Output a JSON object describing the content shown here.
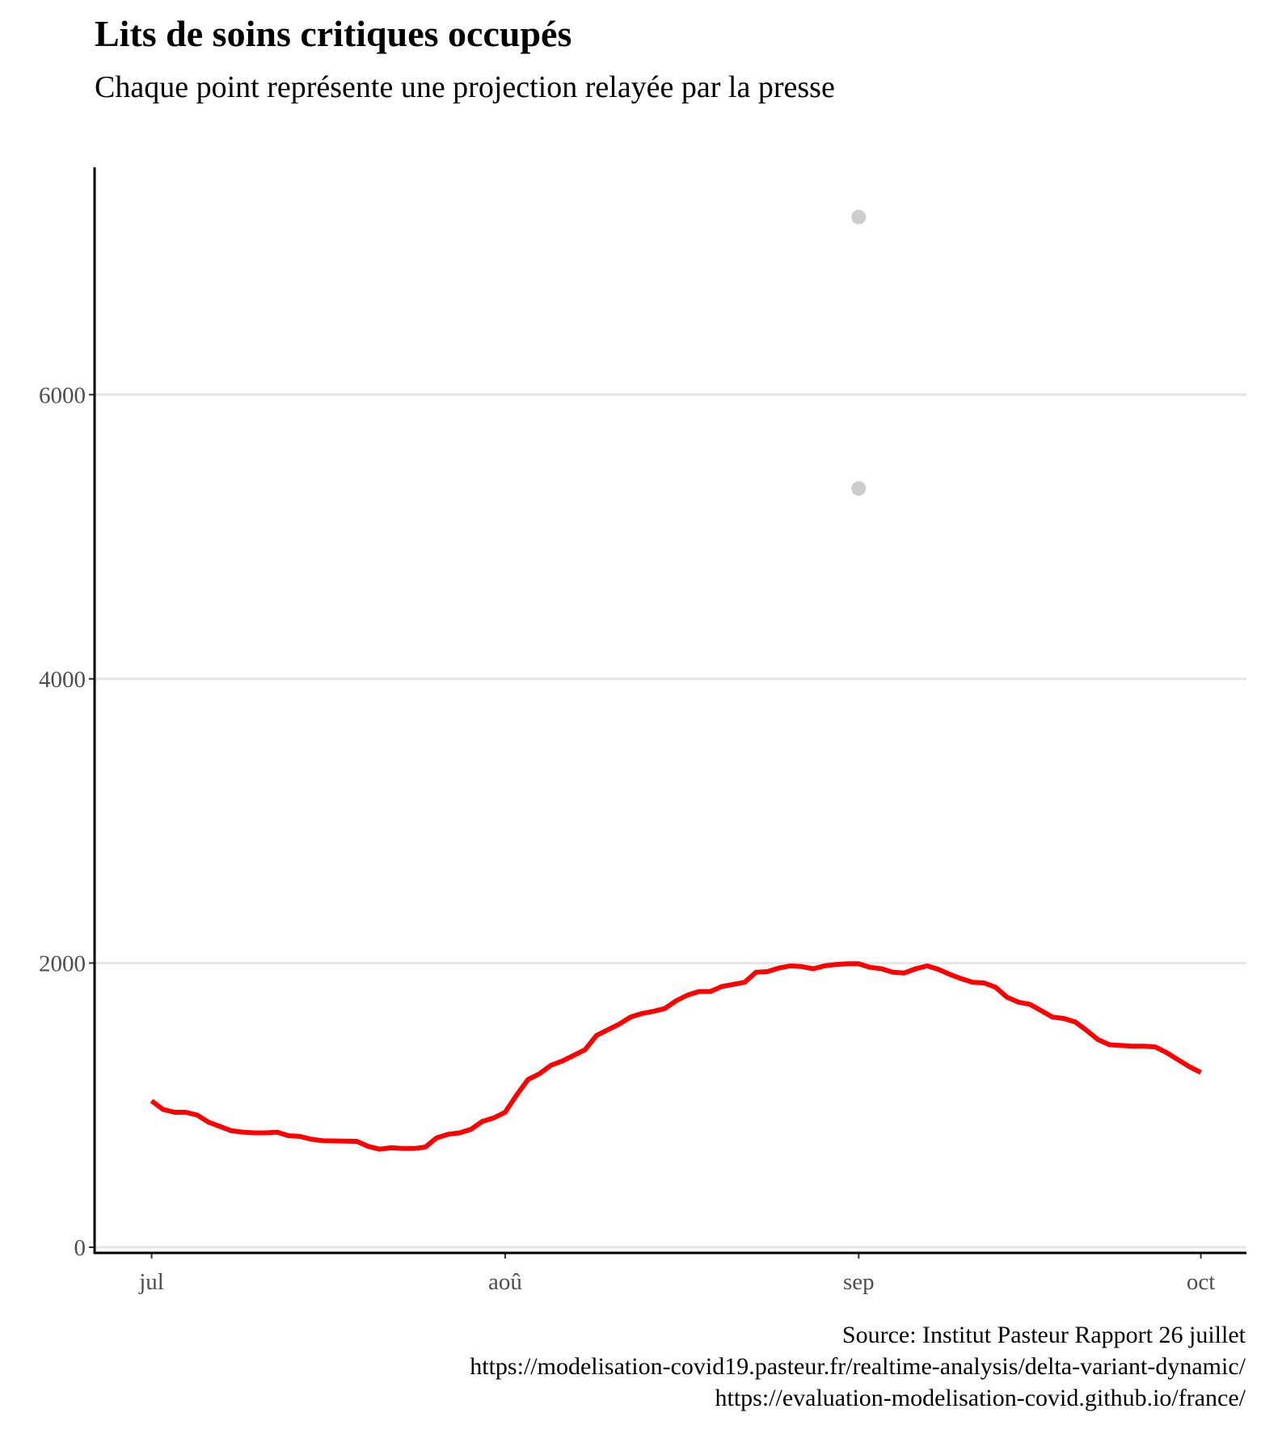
{
  "chart_data": {
    "type": "line",
    "title": "Lits de soins critiques occupés",
    "subtitle": "Chaque point représente une projection relayée par la presse",
    "xlabel": "",
    "ylabel": "",
    "xlim": [
      "2021-06-26",
      "2021-10-05"
    ],
    "ylim": [
      0,
      7600
    ],
    "x_ticks": [
      {
        "date": "2021-07-01",
        "label": "jul"
      },
      {
        "date": "2021-08-01",
        "label": "aoû"
      },
      {
        "date": "2021-09-01",
        "label": "sep"
      },
      {
        "date": "2021-10-01",
        "label": "oct"
      }
    ],
    "y_ticks": [
      0,
      2000,
      4000,
      6000
    ],
    "grid": "horizontal",
    "legend": "none",
    "colors": {
      "line": "#ff0000",
      "points": "#cccccc",
      "grid": "#e5e5e5",
      "axis": "#000000"
    },
    "series": [
      {
        "color": "#ff0000",
        "x": [
          "2021-07-01",
          "2021-07-02",
          "2021-07-03",
          "2021-07-04",
          "2021-07-05",
          "2021-07-06",
          "2021-07-07",
          "2021-07-08",
          "2021-07-09",
          "2021-07-10",
          "2021-07-11",
          "2021-07-12",
          "2021-07-13",
          "2021-07-14",
          "2021-07-15",
          "2021-07-16",
          "2021-07-17",
          "2021-07-18",
          "2021-07-19",
          "2021-07-20",
          "2021-07-21",
          "2021-07-22",
          "2021-07-23",
          "2021-07-24",
          "2021-07-25",
          "2021-07-26",
          "2021-07-27",
          "2021-07-28",
          "2021-07-29",
          "2021-07-30",
          "2021-07-31",
          "2021-08-01",
          "2021-08-02",
          "2021-08-03",
          "2021-08-04",
          "2021-08-05",
          "2021-08-06",
          "2021-08-07",
          "2021-08-08",
          "2021-08-09",
          "2021-08-10",
          "2021-08-11",
          "2021-08-12",
          "2021-08-13",
          "2021-08-14",
          "2021-08-15",
          "2021-08-16",
          "2021-08-17",
          "2021-08-18",
          "2021-08-19",
          "2021-08-20",
          "2021-08-21",
          "2021-08-22",
          "2021-08-23",
          "2021-08-24",
          "2021-08-25",
          "2021-08-26",
          "2021-08-27",
          "2021-08-28",
          "2021-08-29",
          "2021-08-30",
          "2021-08-31",
          "2021-09-01",
          "2021-09-02",
          "2021-09-03",
          "2021-09-04",
          "2021-09-05",
          "2021-09-06",
          "2021-09-07",
          "2021-09-08",
          "2021-09-09",
          "2021-09-10",
          "2021-09-11",
          "2021-09-12",
          "2021-09-13",
          "2021-09-14",
          "2021-09-15",
          "2021-09-16",
          "2021-09-17",
          "2021-09-18",
          "2021-09-19",
          "2021-09-20",
          "2021-09-21",
          "2021-09-22",
          "2021-09-23",
          "2021-09-24",
          "2021-09-25",
          "2021-09-26",
          "2021-09-27",
          "2021-09-28",
          "2021-09-29",
          "2021-09-30",
          "2021-10-01"
        ],
        "y": [
          1030,
          970,
          950,
          950,
          930,
          880,
          850,
          820,
          810,
          805,
          805,
          810,
          785,
          780,
          760,
          750,
          748,
          747,
          745,
          710,
          690,
          700,
          695,
          695,
          705,
          770,
          795,
          805,
          830,
          885,
          910,
          950,
          1070,
          1180,
          1220,
          1280,
          1310,
          1350,
          1390,
          1490,
          1530,
          1570,
          1620,
          1645,
          1660,
          1680,
          1735,
          1775,
          1800,
          1800,
          1835,
          1850,
          1865,
          1935,
          1940,
          1965,
          1980,
          1975,
          1960,
          1980,
          1990,
          1995,
          1995,
          1970,
          1960,
          1935,
          1930,
          1960,
          1980,
          1955,
          1920,
          1890,
          1865,
          1860,
          1830,
          1760,
          1725,
          1710,
          1665,
          1620,
          1610,
          1585,
          1525,
          1460,
          1425,
          1420,
          1415,
          1415,
          1410,
          1370,
          1320,
          1270,
          1230
        ]
      }
    ],
    "points": [
      {
        "x": "2021-09-01",
        "y": 7250
      },
      {
        "x": "2021-09-01",
        "y": 5340
      }
    ],
    "caption": [
      "Source: Institut Pasteur Rapport 26 juillet",
      "https://modelisation-covid19.pasteur.fr/realtime-analysis/delta-variant-dynamic/",
      "https://evaluation-modelisation-covid.github.io/france/"
    ]
  }
}
